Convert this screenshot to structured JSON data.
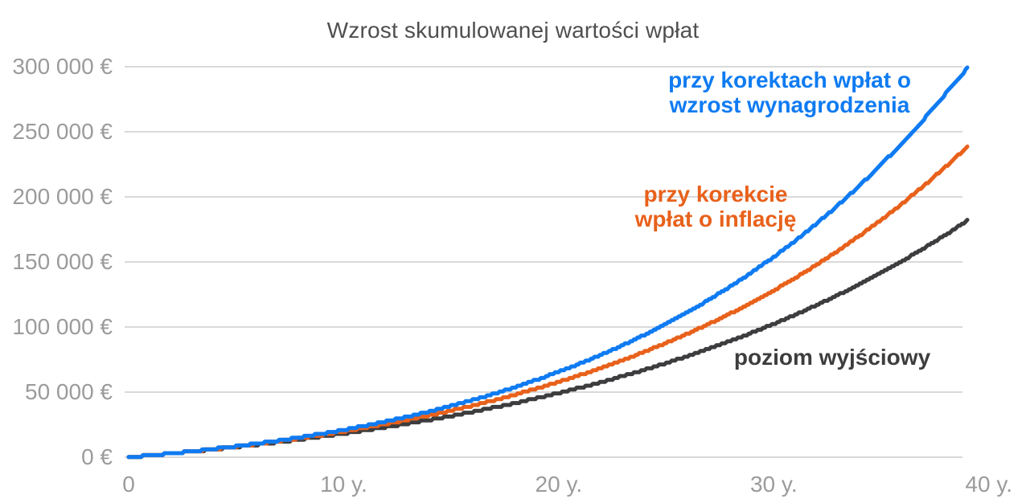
{
  "chart_data": {
    "type": "line",
    "title": "Wzrost skumulowanej wartości wpłat",
    "xlabel": "",
    "ylabel": "",
    "x_unit": "years",
    "xlim": [
      0,
      40
    ],
    "ylim": [
      0,
      300000
    ],
    "grid": "horizontal-only",
    "legend_position": "inline-annotations",
    "xtick_labels": [
      "0",
      "10 y.",
      "20 y.",
      "30 y.",
      "40 y."
    ],
    "ytick_labels": [
      "0 €",
      "50 000 €",
      "100 000 €",
      "150 000 €",
      "200 000 €",
      "250 000 €",
      "300 000 €"
    ],
    "x_years": [
      0,
      1,
      2,
      3,
      4,
      5,
      6,
      7,
      8,
      9,
      10,
      11,
      12,
      13,
      14,
      15,
      16,
      17,
      18,
      19,
      20,
      21,
      22,
      23,
      24,
      25,
      26,
      27,
      28,
      29,
      30,
      31,
      32,
      33,
      34,
      35,
      36,
      37,
      38,
      39
    ],
    "series": [
      {
        "id": "wages",
        "name": "przy korektach wpłat o wzrost wynagrodzenia",
        "color": "#0f7bf2",
        "values": [
          0,
          1400,
          3000,
          4600,
          6500,
          8400,
          10600,
          12900,
          15400,
          18100,
          21000,
          24200,
          27600,
          31200,
          35200,
          39400,
          43900,
          48800,
          54000,
          59600,
          65600,
          72000,
          78900,
          86200,
          94100,
          102500,
          111500,
          121100,
          131300,
          142200,
          153900,
          166300,
          179600,
          193700,
          208800,
          224800,
          241900,
          260000,
          279400,
          298800
        ]
      },
      {
        "id": "inflation",
        "name": "przy korekcie wpłat o inflację",
        "color": "#e8611b",
        "values": [
          0,
          1400,
          2900,
          4600,
          6300,
          8200,
          10200,
          12400,
          14700,
          17100,
          19800,
          22600,
          25600,
          28800,
          32200,
          35800,
          39700,
          43800,
          48200,
          52900,
          57800,
          63100,
          68700,
          74700,
          81000,
          87800,
          94900,
          102500,
          110500,
          119100,
          128100,
          137800,
          147900,
          158700,
          170200,
          182300,
          195200,
          208800,
          223200,
          238500
        ]
      },
      {
        "id": "baseline",
        "name": "poziom wyjściowy",
        "color": "#3d3d3f",
        "values": [
          0,
          1400,
          2900,
          4500,
          6100,
          7900,
          9700,
          11700,
          13700,
          15900,
          18200,
          20600,
          23200,
          25900,
          28700,
          31700,
          34800,
          38200,
          41700,
          45400,
          49300,
          53400,
          57800,
          62400,
          67200,
          72300,
          77700,
          83400,
          89400,
          95700,
          102400,
          109500,
          116900,
          124700,
          133000,
          141700,
          150900,
          160700,
          170900,
          181700
        ]
      }
    ],
    "annotations": [
      {
        "series": "wages",
        "lines": [
          "przy korektach wpłat o",
          "wzrost wynagrodzenia"
        ],
        "color": "#0f7bf2"
      },
      {
        "series": "inflation",
        "lines": [
          "przy korekcie",
          "wpłat o inflację"
        ],
        "color": "#e8611b"
      },
      {
        "series": "baseline",
        "lines": [
          "poziom wyjściowy"
        ],
        "color": "#3d3d3f"
      }
    ],
    "gridline_color": "#d9d9d9",
    "background_color": "#ffffff",
    "tick_label_color": "#9b9b9b",
    "title_color": "#4f4f4f"
  }
}
